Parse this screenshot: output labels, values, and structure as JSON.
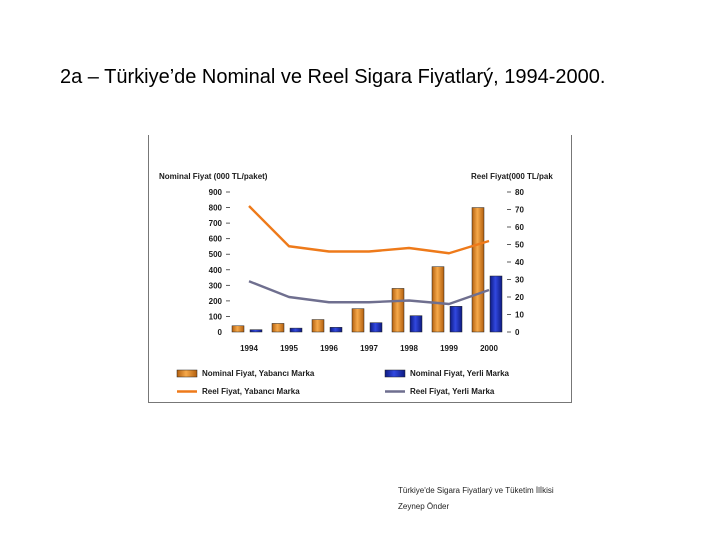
{
  "slide": {
    "title": "2a – Türkiye’de Nominal ve Reel Sigara Fiyatlarý, 1994-2000.",
    "footer_line1": "Türkiye'de Sigara Fiyatlarý ve Tüketim İlİkisi",
    "footer_line2": "Zeynep Önder"
  },
  "chart_data": {
    "type": "bar",
    "title": "",
    "ylabel_left": "Nominal Fiyat (000 TL/paket)",
    "ylabel_right": "Reel Fiyat(000 TL/pak",
    "categories": [
      "1994",
      "1995",
      "1996",
      "1997",
      "1998",
      "1999",
      "2000"
    ],
    "ylim_left": [
      0,
      900
    ],
    "ylim_right": [
      0,
      80
    ],
    "yticks_left": [
      "0",
      "100",
      "200",
      "300",
      "400",
      "500",
      "600",
      "700",
      "800",
      "900"
    ],
    "yticks_right": [
      "0",
      "10",
      "20",
      "30",
      "40",
      "50",
      "60",
      "70",
      "80"
    ],
    "series": [
      {
        "name": "Nominal Fiyat, Yabancı Marka",
        "type": "bar",
        "axis": "left",
        "color": "#e8891f",
        "values": [
          40,
          55,
          80,
          150,
          280,
          420,
          800
        ]
      },
      {
        "name": "Nominal Fiyat, Yerli Marka",
        "type": "bar",
        "axis": "left",
        "color": "#1c2fb8",
        "values": [
          15,
          25,
          30,
          60,
          105,
          165,
          360
        ]
      },
      {
        "name": "Reel Fiyat, Yabancı Marka",
        "type": "line",
        "axis": "right",
        "color": "#ee7a1a",
        "values": [
          72,
          49,
          46,
          46,
          48,
          45,
          52
        ]
      },
      {
        "name": "Reel Fiyat, Yerli Marka",
        "type": "line",
        "axis": "right",
        "color": "#6f6f8f",
        "values": [
          29,
          20,
          17,
          17,
          18,
          16,
          24
        ]
      }
    ],
    "legend_position": "bottom",
    "grid": false
  }
}
